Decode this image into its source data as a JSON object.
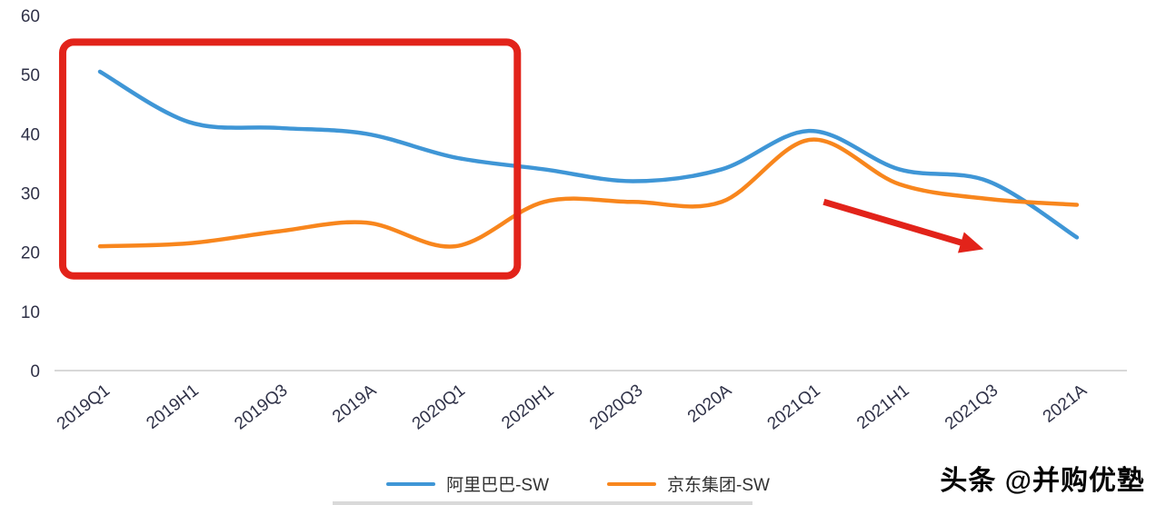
{
  "chart_data": {
    "type": "line",
    "categories": [
      "2019Q1",
      "2019H1",
      "2019Q3",
      "2019A",
      "2020Q1",
      "2020H1",
      "2020Q3",
      "2020A",
      "2021Q1",
      "2021H1",
      "2021Q3",
      "2021A"
    ],
    "series": [
      {
        "name": "阿里巴巴-SW",
        "color": "#3f96d6",
        "values": [
          50.5,
          42,
          41,
          40,
          36,
          34,
          32,
          34,
          40.5,
          34,
          32,
          22.5
        ]
      },
      {
        "name": "京东集团-SW",
        "color": "#f8861d",
        "values": [
          21,
          21.5,
          23.5,
          25,
          21,
          28.5,
          28.5,
          28.5,
          39,
          31.5,
          29,
          28
        ]
      }
    ],
    "title": "",
    "xlabel": "",
    "ylabel": "",
    "ylim": [
      0,
      60
    ],
    "yticks": [
      0,
      10,
      20,
      30,
      40,
      50,
      60
    ],
    "grid": false,
    "legend_position": "bottom",
    "annotations": [
      {
        "type": "box",
        "color": "#e2231a",
        "x0": -0.42,
        "x1": 4.7,
        "y0": 16,
        "y1": 55.5
      },
      {
        "type": "arrow",
        "color": "#e2231a",
        "from": {
          "x": 8.15,
          "y": 28.5
        },
        "to": {
          "x": 9.95,
          "y": 20.5
        }
      }
    ]
  },
  "legend": {
    "items": [
      {
        "label": "阿里巴巴-SW",
        "color": "#3f96d6"
      },
      {
        "label": "京东集团-SW",
        "color": "#f8861d"
      }
    ]
  },
  "watermark": {
    "text": "头条 @并购优塾"
  }
}
